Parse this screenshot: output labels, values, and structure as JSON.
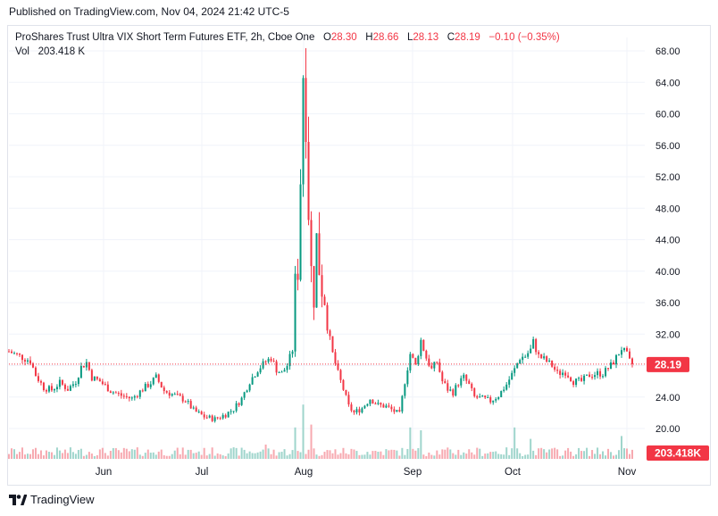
{
  "header": {
    "published": "Published on TradingView.com, Nov 04, 2024 21:42 UTC-5"
  },
  "legend": {
    "symbol": "ProShares Trust Ultra VIX Short Term Futures ETF, 2h, Cboe One",
    "o_label": "O",
    "o_value": "28.30",
    "h_label": "H",
    "h_value": "28.66",
    "l_label": "L",
    "l_value": "28.13",
    "c_label": "C",
    "c_value": "28.19",
    "change": "−0.10 (−0.35%)",
    "vol_label": "Vol",
    "vol_value": "203.418 K"
  },
  "footer": {
    "brand": "TradingView"
  },
  "colors": {
    "up": "#089981",
    "down": "#f23645",
    "up_vol": "#9fd5cc",
    "down_vol": "#f7a9b0",
    "grid": "#f0f3fa",
    "text": "#131722"
  },
  "chart_data": {
    "type": "candlestick",
    "y_ticks": [
      "68.00",
      "64.00",
      "60.00",
      "56.00",
      "52.00",
      "48.00",
      "44.00",
      "40.00",
      "36.00",
      "32.00",
      "28.00",
      "24.00",
      "20.00"
    ],
    "y_tick_values": [
      68,
      64,
      60,
      56,
      52,
      48,
      44,
      40,
      36,
      32,
      28,
      24,
      20
    ],
    "ylim": [
      17.5,
      69.5
    ],
    "x_tick_labels": [
      "Jun",
      "Jul",
      "Aug",
      "Sep",
      "Oct",
      "Nov"
    ],
    "last_price_label": "28.19",
    "last_price": 28.19,
    "last_volume_label": "203.418K",
    "price_path": [
      [
        0,
        29.8
      ],
      [
        4,
        29.2
      ],
      [
        8,
        28.6
      ],
      [
        10,
        26.8
      ],
      [
        13,
        25.2
      ],
      [
        16,
        24.9
      ],
      [
        19,
        25.8
      ],
      [
        22,
        25.0
      ],
      [
        25,
        26.0
      ],
      [
        27,
        27.8
      ],
      [
        29,
        28.4
      ],
      [
        31,
        26.5
      ],
      [
        34,
        26.0
      ],
      [
        38,
        24.8
      ],
      [
        42,
        24.2
      ],
      [
        46,
        23.8
      ],
      [
        50,
        25.0
      ],
      [
        53,
        25.8
      ],
      [
        55,
        26.5
      ],
      [
        58,
        24.8
      ],
      [
        62,
        24.2
      ],
      [
        66,
        23.6
      ],
      [
        69,
        22.3
      ],
      [
        73,
        21.5
      ],
      [
        77,
        21.2
      ],
      [
        81,
        21.8
      ],
      [
        84,
        22.5
      ],
      [
        87,
        23.8
      ],
      [
        90,
        26.0
      ],
      [
        93,
        27.5
      ],
      [
        96,
        28.5
      ],
      [
        98,
        29.0
      ],
      [
        100,
        27.5
      ],
      [
        102,
        27.0
      ],
      [
        104,
        28.0
      ],
      [
        106,
        30.0
      ],
      [
        107,
        38.0
      ],
      [
        108,
        40.5
      ],
      [
        109,
        52.0
      ],
      [
        110,
        65.5
      ],
      [
        111,
        60.0
      ],
      [
        112,
        48.0
      ],
      [
        113,
        40.0
      ],
      [
        114,
        37.0
      ],
      [
        115,
        44.0
      ],
      [
        116,
        40.5
      ],
      [
        117,
        38.0
      ],
      [
        118,
        36.0
      ],
      [
        119,
        33.0
      ],
      [
        121,
        29.5
      ],
      [
        123,
        27.0
      ],
      [
        125,
        25.0
      ],
      [
        127,
        22.8
      ],
      [
        129,
        22.0
      ],
      [
        132,
        22.6
      ],
      [
        135,
        23.8
      ],
      [
        138,
        23.0
      ],
      [
        141,
        22.8
      ],
      [
        144,
        22.2
      ],
      [
        146,
        21.8
      ],
      [
        148,
        26.0
      ],
      [
        150,
        29.5
      ],
      [
        152,
        28.0
      ],
      [
        154,
        31.2
      ],
      [
        156,
        29.0
      ],
      [
        158,
        27.5
      ],
      [
        160,
        28.5
      ],
      [
        162,
        26.0
      ],
      [
        164,
        25.0
      ],
      [
        166,
        24.6
      ],
      [
        168,
        25.8
      ],
      [
        170,
        26.5
      ],
      [
        172,
        25.5
      ],
      [
        174,
        24.0
      ],
      [
        177,
        23.8
      ],
      [
        180,
        23.5
      ],
      [
        183,
        24.2
      ],
      [
        186,
        25.6
      ],
      [
        189,
        27.5
      ],
      [
        191,
        29.0
      ],
      [
        193,
        29.2
      ],
      [
        195,
        30.0
      ],
      [
        196,
        31.0
      ],
      [
        198,
        29.2
      ],
      [
        200,
        28.8
      ],
      [
        203,
        28.0
      ],
      [
        205,
        27.0
      ],
      [
        208,
        27.2
      ],
      [
        211,
        26.0
      ],
      [
        214,
        26.0
      ],
      [
        217,
        26.8
      ],
      [
        220,
        27.0
      ],
      [
        222,
        27.0
      ],
      [
        225,
        28.0
      ],
      [
        227,
        29.0
      ],
      [
        229,
        30.2
      ],
      [
        231,
        29.3
      ],
      [
        232,
        28.5
      ],
      [
        233,
        28.2
      ]
    ],
    "volume_spikes": {
      "110": 0.95,
      "107": 0.55,
      "113": 0.6,
      "96": 0.25,
      "150": 0.55,
      "154": 0.5,
      "189": 0.55,
      "195": 0.35,
      "229": 0.4
    }
  }
}
